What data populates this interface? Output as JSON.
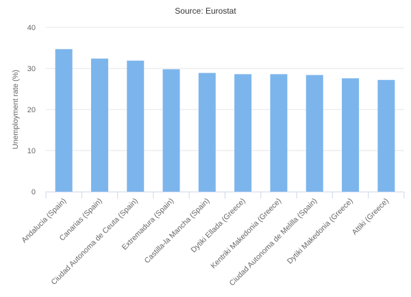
{
  "chart_data": {
    "type": "bar",
    "title": "Source: Eurostat",
    "xlabel": "",
    "ylabel": "Unemployment rate (%)",
    "ylim": [
      0,
      40
    ],
    "yticks": [
      0,
      10,
      20,
      30,
      40
    ],
    "grid": true,
    "legend": "none",
    "categories": [
      "Andalucia (Spain)",
      "Canarias (Spain)",
      "Ciudad Autonoma de Ceuta (Spain)",
      "Extremadura (Spain)",
      "Castilla-la Mancha (Spain)",
      "Dytiki Ellada (Greece)",
      "Kentriki Makedonia (Greece)",
      "Ciudad Autonoma de Melilla (Spain)",
      "Dytiki Makedonia (Greece)",
      "Attiki (Greece)"
    ],
    "values": [
      34.7,
      32.4,
      31.9,
      29.8,
      28.9,
      28.6,
      28.6,
      28.4,
      27.6,
      27.2
    ],
    "colors": {
      "bar": "#7cb5ec",
      "grid": "#e6e6e6",
      "axis": "#ccd6eb",
      "text": "#666666",
      "title": "#333333"
    }
  }
}
